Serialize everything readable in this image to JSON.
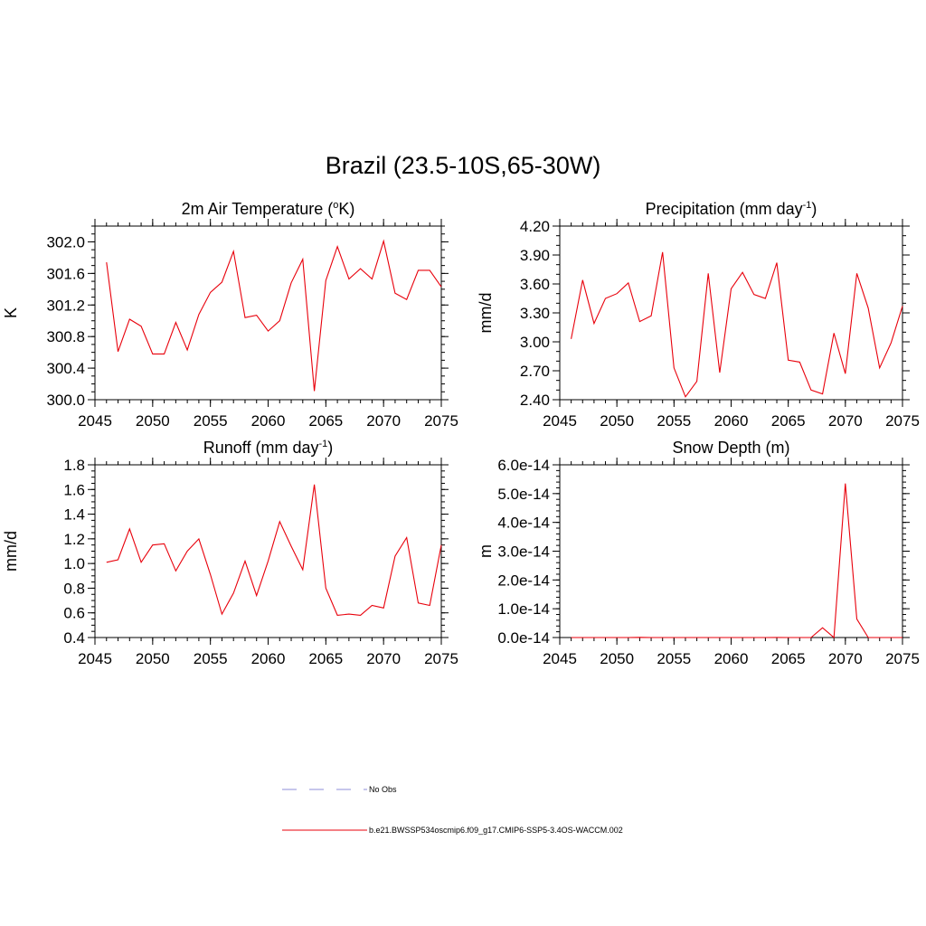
{
  "title": "Brazil (23.5-10S,65-30W)",
  "colors": {
    "model_line": "#e8000b",
    "obs_line": "#8c8cd8",
    "axis": "#000000"
  },
  "legend": {
    "items": [
      {
        "label": "No Obs",
        "style": "dashed",
        "color": "#8c8cd8"
      },
      {
        "label": "b.e21.BWSSP534oscmip6.f09_g17.CMIP6-SSP5-3.4OS-WACCM.002",
        "style": "solid",
        "color": "#e8000b"
      }
    ]
  },
  "chart_data": [
    {
      "type": "line",
      "title": "2m Air Temperature (°K)",
      "title_main": "2m Air Temperature (",
      "title_sup": "o",
      "title_after": "K)",
      "ylabel": "K",
      "xlim": [
        2045,
        2075
      ],
      "ylim": [
        300.0,
        302.2
      ],
      "yticks": [
        300.0,
        300.4,
        300.8,
        301.2,
        301.6,
        302.0
      ],
      "ytick_labels": [
        "300.0",
        "300.4",
        "300.8",
        "301.2",
        "301.6",
        "302.0"
      ],
      "yminor": 0.1,
      "xticks": [
        2045,
        2050,
        2055,
        2060,
        2065,
        2070,
        2075
      ],
      "xtick_labels": [
        "2045",
        "2050",
        "2055",
        "2060",
        "2065",
        "2070",
        "2075"
      ],
      "x": [
        2046,
        2047,
        2048,
        2049,
        2050,
        2051,
        2052,
        2053,
        2054,
        2055,
        2056,
        2057,
        2058,
        2059,
        2060,
        2061,
        2062,
        2063,
        2064,
        2065,
        2066,
        2067,
        2068,
        2069,
        2070,
        2071,
        2072,
        2073,
        2074,
        2075
      ],
      "values": [
        301.74,
        300.61,
        301.02,
        300.93,
        300.58,
        300.58,
        300.98,
        300.63,
        301.08,
        301.36,
        301.49,
        301.88,
        301.04,
        301.07,
        300.87,
        301.0,
        301.48,
        301.78,
        300.11,
        301.51,
        301.94,
        301.53,
        301.66,
        301.53,
        302.01,
        301.35,
        301.27,
        301.64,
        301.64,
        301.43
      ]
    },
    {
      "type": "line",
      "title": "Precipitation (mm day-1)",
      "title_main": "Precipitation (mm day",
      "title_sup": "-1",
      "title_after": ")",
      "ylabel": "mm/d",
      "xlim": [
        2045,
        2075
      ],
      "ylim": [
        2.4,
        4.2
      ],
      "yticks": [
        2.4,
        2.7,
        3.0,
        3.3,
        3.6,
        3.9,
        4.2
      ],
      "ytick_labels": [
        "2.40",
        "2.70",
        "3.00",
        "3.30",
        "3.60",
        "3.90",
        "4.20"
      ],
      "yminor": 0.1,
      "xticks": [
        2045,
        2050,
        2055,
        2060,
        2065,
        2070,
        2075
      ],
      "xtick_labels": [
        "2045",
        "2050",
        "2055",
        "2060",
        "2065",
        "2070",
        "2075"
      ],
      "x": [
        2046,
        2047,
        2048,
        2049,
        2050,
        2051,
        2052,
        2053,
        2054,
        2055,
        2056,
        2057,
        2058,
        2059,
        2060,
        2061,
        2062,
        2063,
        2064,
        2065,
        2066,
        2067,
        2068,
        2069,
        2070,
        2071,
        2072,
        2073,
        2074,
        2075
      ],
      "values": [
        3.03,
        3.64,
        3.19,
        3.45,
        3.5,
        3.61,
        3.21,
        3.27,
        3.93,
        2.73,
        2.43,
        2.59,
        3.71,
        2.68,
        3.55,
        3.72,
        3.49,
        3.45,
        3.82,
        2.81,
        2.79,
        2.5,
        2.46,
        3.09,
        2.67,
        3.71,
        3.35,
        2.73,
        2.99,
        3.37
      ]
    },
    {
      "type": "line",
      "title": "Runoff (mm day-1)",
      "title_main": "Runoff (mm day",
      "title_sup": "-1",
      "title_after": ")",
      "ylabel": "mm/d",
      "xlim": [
        2045,
        2075
      ],
      "ylim": [
        0.4,
        1.8
      ],
      "yticks": [
        0.4,
        0.6,
        0.8,
        1.0,
        1.2,
        1.4,
        1.6,
        1.8
      ],
      "ytick_labels": [
        "0.4",
        "0.6",
        "0.8",
        "1.0",
        "1.2",
        "1.4",
        "1.6",
        "1.8"
      ],
      "yminor": 0.05,
      "xticks": [
        2045,
        2050,
        2055,
        2060,
        2065,
        2070,
        2075
      ],
      "xtick_labels": [
        "2045",
        "2050",
        "2055",
        "2060",
        "2065",
        "2070",
        "2075"
      ],
      "x": [
        2046,
        2047,
        2048,
        2049,
        2050,
        2051,
        2052,
        2053,
        2054,
        2055,
        2056,
        2057,
        2058,
        2059,
        2060,
        2061,
        2062,
        2063,
        2064,
        2065,
        2066,
        2067,
        2068,
        2069,
        2070,
        2071,
        2072,
        2073,
        2074,
        2075
      ],
      "values": [
        1.01,
        1.03,
        1.28,
        1.01,
        1.15,
        1.16,
        0.94,
        1.1,
        1.2,
        0.91,
        0.59,
        0.76,
        1.02,
        0.74,
        1.02,
        1.34,
        1.14,
        0.95,
        1.64,
        0.8,
        0.58,
        0.59,
        0.58,
        0.66,
        0.64,
        1.06,
        1.21,
        0.68,
        0.66,
        1.15
      ]
    },
    {
      "type": "line",
      "title": "Snow Depth (m)",
      "title_main": "Snow Depth (m)",
      "title_sup": "",
      "title_after": "",
      "ylabel": "m",
      "xlim": [
        2045,
        2075
      ],
      "ylim": [
        0,
        6e-14
      ],
      "yticks": [
        0,
        1e-14,
        2e-14,
        3e-14,
        4e-14,
        5e-14,
        6e-14
      ],
      "ytick_labels": [
        "0.0e-14",
        "1.0e-14",
        "2.0e-14",
        "3.0e-14",
        "4.0e-14",
        "5.0e-14",
        "6.0e-14"
      ],
      "yminor": 2e-15,
      "xticks": [
        2045,
        2050,
        2055,
        2060,
        2065,
        2070,
        2075
      ],
      "xtick_labels": [
        "2045",
        "2050",
        "2055",
        "2060",
        "2065",
        "2070",
        "2075"
      ],
      "x": [
        2046,
        2047,
        2048,
        2049,
        2050,
        2051,
        2052,
        2053,
        2054,
        2055,
        2056,
        2057,
        2058,
        2059,
        2060,
        2061,
        2062,
        2063,
        2064,
        2065,
        2066,
        2067,
        2068,
        2069,
        2070,
        2071,
        2072,
        2073,
        2074,
        2075
      ],
      "values": [
        0,
        0,
        0,
        0,
        0,
        0,
        5e-17,
        0,
        0,
        0,
        0,
        0,
        0,
        0,
        0,
        0,
        0,
        0,
        4e-17,
        0,
        0,
        0,
        3.4e-15,
        0,
        5.35e-14,
        6.4e-15,
        0,
        0,
        0,
        0
      ]
    }
  ]
}
